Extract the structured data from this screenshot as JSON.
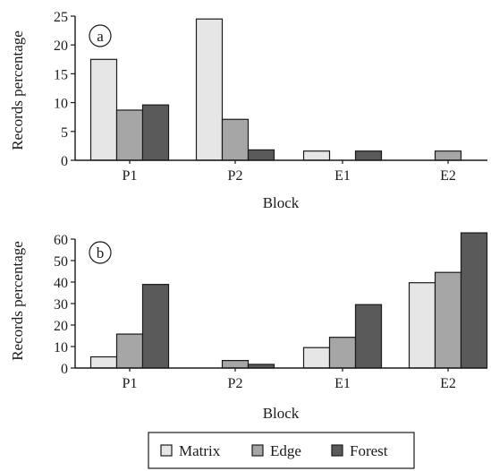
{
  "chart_data": [
    {
      "type": "bar",
      "panel_label": "a",
      "categories": [
        "P1",
        "P2",
        "E1",
        "E2"
      ],
      "xlabel": "Block",
      "ylabel": "Records percentage",
      "ylim": [
        0,
        25
      ],
      "yticks": [
        0,
        5,
        10,
        15,
        20,
        25
      ],
      "series": [
        {
          "name": "Matrix",
          "values": [
            17.5,
            24.5,
            1.6,
            0.0
          ]
        },
        {
          "name": "Edge",
          "values": [
            8.7,
            7.1,
            0.0,
            1.6
          ]
        },
        {
          "name": "Forest",
          "values": [
            9.6,
            1.8,
            1.6,
            0.0
          ]
        }
      ]
    },
    {
      "type": "bar",
      "panel_label": "b",
      "categories": [
        "P1",
        "P2",
        "E1",
        "E2"
      ],
      "xlabel": "Block",
      "ylabel": "Records percentage",
      "ylim": [
        0,
        60
      ],
      "yticks": [
        0,
        10,
        20,
        30,
        40,
        50,
        60
      ],
      "series": [
        {
          "name": "Matrix",
          "values": [
            5.2,
            0.0,
            9.5,
            39.7
          ]
        },
        {
          "name": "Edge",
          "values": [
            15.8,
            3.5,
            14.3,
            44.5
          ]
        },
        {
          "name": "Forest",
          "values": [
            38.9,
            1.7,
            29.5,
            62.9
          ]
        }
      ]
    }
  ],
  "legend": {
    "items": [
      {
        "label": "Matrix",
        "color": "#e6e6e6"
      },
      {
        "label": "Edge",
        "color": "#a6a6a6"
      },
      {
        "label": "Forest",
        "color": "#5a5a5a"
      }
    ]
  },
  "colors": {
    "Matrix": "#e6e6e6",
    "Edge": "#a6a6a6",
    "Forest": "#5a5a5a"
  }
}
